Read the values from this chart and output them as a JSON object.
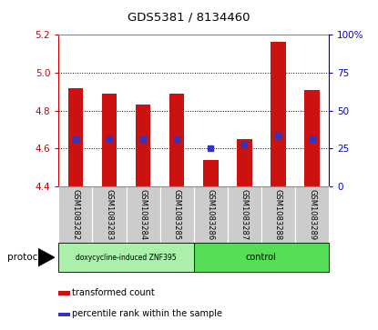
{
  "title": "GDS5381 / 8134460",
  "samples": [
    "GSM1083282",
    "GSM1083283",
    "GSM1083284",
    "GSM1083285",
    "GSM1083286",
    "GSM1083287",
    "GSM1083288",
    "GSM1083289"
  ],
  "bar_bottom": 4.4,
  "bar_tops": [
    4.92,
    4.89,
    4.83,
    4.89,
    4.54,
    4.65,
    5.16,
    4.91
  ],
  "percentile_vals": [
    4.65,
    4.65,
    4.65,
    4.65,
    4.6,
    4.62,
    4.67,
    4.65
  ],
  "ylim_left": [
    4.4,
    5.2
  ],
  "ylim_right": [
    0,
    100
  ],
  "yticks_left": [
    4.4,
    4.6,
    4.8,
    5.0,
    5.2
  ],
  "yticks_right": [
    0,
    25,
    50,
    75,
    100
  ],
  "ytick_labels_right": [
    "0",
    "25",
    "50",
    "75",
    "100%"
  ],
  "bar_color": "#cc1111",
  "blue_color": "#3333bb",
  "group1_color": "#aaf0aa",
  "group2_color": "#55dd55",
  "group1_label": "doxycycline-induced ZNF395",
  "group2_label": "control",
  "protocol_label": "protocol",
  "left_axis_color": "#cc0000",
  "right_axis_color": "#0000cc",
  "legend_red_label": "transformed count",
  "legend_blue_label": "percentile rank within the sample",
  "grid_dotted_at": [
    4.6,
    4.8,
    5.0
  ],
  "bar_width": 0.45,
  "bg_xtick": "#cccccc"
}
